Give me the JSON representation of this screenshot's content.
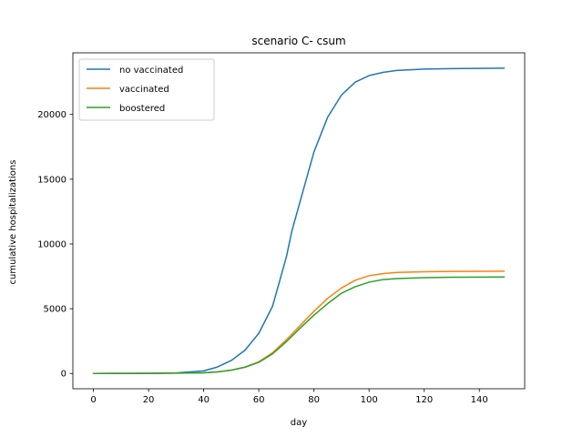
{
  "chart_data": {
    "type": "line",
    "title": "scenario C- csum",
    "xlabel": "day",
    "ylabel": "cumulative hospitalizations",
    "xlim": [
      -7.45,
      156.45
    ],
    "ylim": [
      -1180,
      24760
    ],
    "xticks": [
      0,
      20,
      40,
      60,
      80,
      100,
      120,
      140
    ],
    "yticks": [
      0,
      5000,
      10000,
      15000,
      20000
    ],
    "grid": false,
    "legend_position": "upper left",
    "series": [
      {
        "name": "no vaccinated",
        "color": "#1f77b4",
        "x": [
          0,
          10,
          20,
          30,
          40,
          45,
          50,
          55,
          60,
          65,
          70,
          72,
          75,
          80,
          85,
          90,
          95,
          100,
          105,
          110,
          120,
          130,
          140,
          149
        ],
        "y": [
          0,
          5,
          15,
          40,
          200,
          500,
          1000,
          1800,
          3100,
          5200,
          9000,
          11000,
          13300,
          17100,
          19800,
          21500,
          22500,
          23000,
          23250,
          23400,
          23500,
          23540,
          23560,
          23570
        ]
      },
      {
        "name": "vaccinated",
        "color": "#ff7f0e",
        "x": [
          0,
          10,
          20,
          30,
          40,
          45,
          50,
          55,
          60,
          65,
          70,
          75,
          80,
          85,
          90,
          95,
          100,
          105,
          110,
          120,
          130,
          140,
          149
        ],
        "y": [
          0,
          5,
          10,
          20,
          50,
          120,
          260,
          500,
          900,
          1600,
          2600,
          3700,
          4800,
          5800,
          6600,
          7200,
          7550,
          7700,
          7800,
          7850,
          7880,
          7890,
          7900
        ]
      },
      {
        "name": "boostered",
        "color": "#2ca02c",
        "x": [
          0,
          10,
          20,
          30,
          40,
          45,
          50,
          55,
          60,
          65,
          70,
          75,
          80,
          85,
          90,
          95,
          100,
          105,
          110,
          120,
          130,
          140,
          149
        ],
        "y": [
          0,
          5,
          10,
          20,
          50,
          120,
          250,
          480,
          860,
          1520,
          2450,
          3500,
          4500,
          5400,
          6200,
          6700,
          7050,
          7250,
          7330,
          7400,
          7430,
          7440,
          7450
        ]
      }
    ]
  }
}
